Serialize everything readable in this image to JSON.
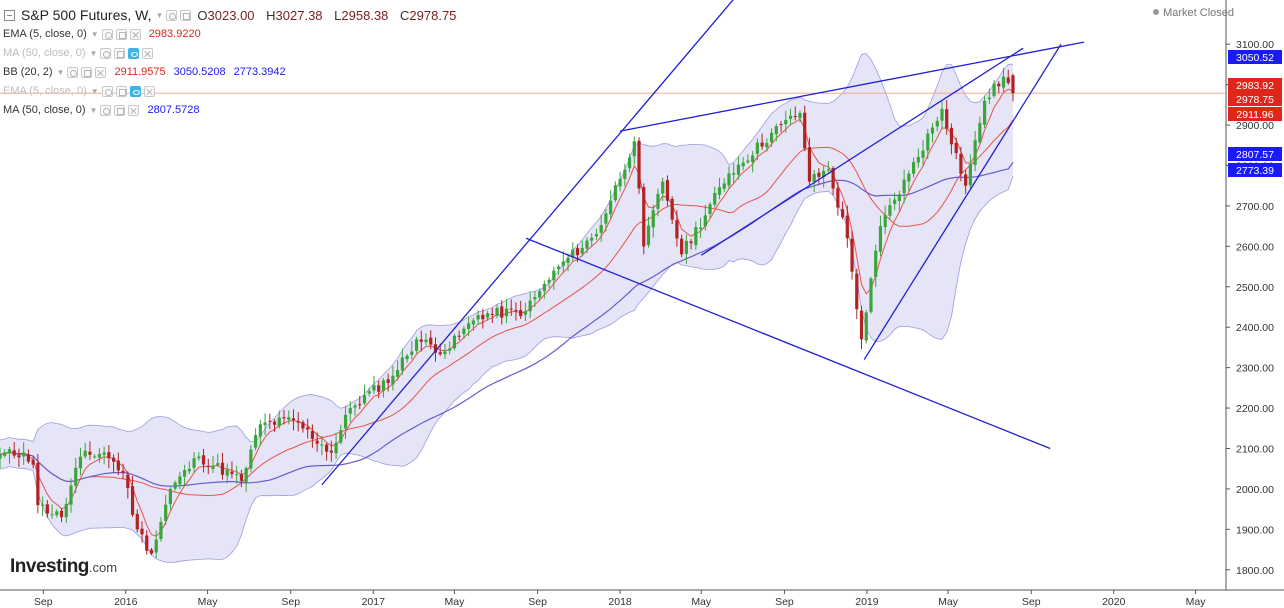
{
  "header": {
    "symbol": "S&P 500 Futures, W,",
    "open_label": "O",
    "open": "3023.00",
    "high_label": "H",
    "high": "3027.38",
    "low_label": "L",
    "low": "2958.38",
    "close_label": "C",
    "close": "2978.75"
  },
  "market_status": "Market Closed",
  "indicators": [
    {
      "label": "EMA (5, close, 0)",
      "values": [
        "2983.9220"
      ],
      "colors": [
        "#e0261b"
      ],
      "dim": false
    },
    {
      "label": "MA (50, close, 0)",
      "values": [],
      "colors": [],
      "dim": true
    },
    {
      "label": "BB (20, 2)",
      "values": [
        "2911.9575",
        "3050.5208",
        "2773.3942"
      ],
      "colors": [
        "#e0261b",
        "#1a1aff",
        "#1a1aff"
      ],
      "dim": false
    },
    {
      "label": "EMA (5, close, 0)",
      "values": [],
      "colors": [],
      "dim": true
    },
    {
      "label": "MA (50, close, 0)",
      "values": [
        "2807.5728"
      ],
      "colors": [
        "#1a1aff"
      ],
      "dim": false
    }
  ],
  "logo": {
    "main": "Investing",
    "domain": ".com"
  },
  "colors": {
    "up": "#3aa53a",
    "down": "#b22222",
    "ema": "#e8534a",
    "ma50": "#6a5acd",
    "band_fill": "#dcdcf4",
    "band_line": "#9c9ce0",
    "trend": "#1f1fd6",
    "price_line": "#f0a080"
  },
  "chart_data": {
    "type": "candlestick",
    "ylim": [
      1750,
      3140
    ],
    "y_ticks": [
      "3100.00",
      "3000.00",
      "2900.00",
      "2800.00",
      "2700.00",
      "2600.00",
      "2500.00",
      "2400.00",
      "2300.00",
      "2200.00",
      "2100.00",
      "2000.00",
      "1900.00",
      "1800.00"
    ],
    "x_ticks": [
      "Sep",
      "2016",
      "May",
      "Sep",
      "2017",
      "May",
      "Sep",
      "2018",
      "May",
      "Sep",
      "2019",
      "May",
      "Sep",
      "2020",
      "May"
    ],
    "x_range": [
      "2015-06-29",
      "2020-06-15"
    ],
    "price_tags": [
      {
        "label": "3050.52",
        "value": 3050.52,
        "color": "#1a1aff"
      },
      {
        "label": "2983.92",
        "value": 2983.92,
        "color": "#e0261b"
      },
      {
        "label": "2978.75",
        "value": 2978.75,
        "color": "#e0261b"
      },
      {
        "label": "2911.96",
        "value": 2911.96,
        "color": "#e0261b"
      },
      {
        "label": "2807.57",
        "value": 2807.57,
        "color": "#1a1aff"
      },
      {
        "label": "2773.39",
        "value": 2773.39,
        "color": "#1a1aff"
      }
    ],
    "current_price": 2978.75,
    "close_anchors": [
      [
        "2015-06-29",
        2085
      ],
      [
        "2015-08-03",
        2090
      ],
      [
        "2015-08-17",
        2060
      ],
      [
        "2015-08-24",
        1960
      ],
      [
        "2015-09-28",
        1930
      ],
      [
        "2015-10-26",
        2080
      ],
      [
        "2015-11-30",
        2090
      ],
      [
        "2015-12-28",
        2040
      ],
      [
        "2016-01-18",
        1900
      ],
      [
        "2016-02-08",
        1840
      ],
      [
        "2016-03-07",
        2000
      ],
      [
        "2016-04-18",
        2080
      ],
      [
        "2016-06-20",
        2020
      ],
      [
        "2016-07-18",
        2160
      ],
      [
        "2016-09-05",
        2170
      ],
      [
        "2016-10-31",
        2090
      ],
      [
        "2016-11-28",
        2200
      ],
      [
        "2017-01-30",
        2280
      ],
      [
        "2017-03-06",
        2370
      ],
      [
        "2017-04-17",
        2340
      ],
      [
        "2017-06-05",
        2430
      ],
      [
        "2017-08-14",
        2440
      ],
      [
        "2017-10-02",
        2550
      ],
      [
        "2017-11-27",
        2630
      ],
      [
        "2018-01-22",
        2860
      ],
      [
        "2018-02-05",
        2600
      ],
      [
        "2018-03-05",
        2760
      ],
      [
        "2018-04-02",
        2580
      ],
      [
        "2018-06-11",
        2780
      ],
      [
        "2018-08-27",
        2900
      ],
      [
        "2018-09-24",
        2930
      ],
      [
        "2018-10-08",
        2760
      ],
      [
        "2018-11-05",
        2790
      ],
      [
        "2018-12-03",
        2620
      ],
      [
        "2018-12-24",
        2370
      ],
      [
        "2019-01-21",
        2650
      ],
      [
        "2019-03-04",
        2780
      ],
      [
        "2019-04-22",
        2940
      ],
      [
        "2019-05-27",
        2750
      ],
      [
        "2019-06-24",
        2960
      ],
      [
        "2019-07-22",
        3020
      ],
      [
        "2019-08-05",
        2979
      ]
    ],
    "last_candle": {
      "date": "2019-08-05",
      "open": 3023.0,
      "high": 3027.38,
      "low": 2958.38,
      "close": 2978.75
    },
    "indicators": {
      "ema5": 2983.922,
      "bb_mid": 2911.9575,
      "bb_upper": 3050.5208,
      "bb_lower": 2773.3942,
      "ma50": 2807.5728
    }
  }
}
